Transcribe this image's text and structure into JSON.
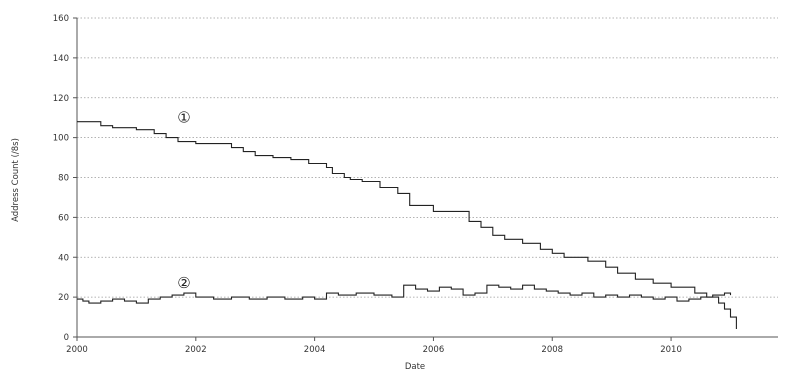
{
  "chart_data": {
    "type": "line",
    "xlabel": "Date",
    "ylabel": "Address Count (/8s)",
    "xlim": [
      2000,
      2011.8
    ],
    "ylim": [
      0,
      160
    ],
    "x_ticks": [
      2000,
      2002,
      2004,
      2006,
      2008,
      2010
    ],
    "y_ticks": [
      0,
      20,
      40,
      60,
      80,
      100,
      120,
      140,
      160
    ],
    "grid": "horizontal dotted",
    "legend": "none",
    "annotations": [
      {
        "label": "①",
        "x": 2001.8,
        "y": 110
      },
      {
        "label": "②",
        "x": 2001.8,
        "y": 27
      }
    ],
    "series": [
      {
        "color": "#222222",
        "step": true,
        "x": [
          2000,
          2000.4,
          2000.6,
          2001.0,
          2001.3,
          2001.5,
          2001.7,
          2002.0,
          2002.6,
          2002.8,
          2003.0,
          2003.3,
          2003.6,
          2003.9,
          2004.2,
          2004.3,
          2004.5,
          2004.6,
          2004.8,
          2005.1,
          2005.4,
          2005.6,
          2006.0,
          2006.6,
          2006.8,
          2007.0,
          2007.2,
          2007.5,
          2007.8,
          2008.0,
          2008.2,
          2008.6,
          2008.9,
          2009.1,
          2009.4,
          2009.7,
          2010.0,
          2010.4,
          2010.6,
          2010.8,
          2010.9,
          2011.0,
          2011.1
        ],
        "y": [
          108,
          106,
          105,
          104,
          102,
          100,
          98,
          97,
          95,
          93,
          91,
          90,
          89,
          87,
          85,
          82,
          80,
          79,
          78,
          75,
          72,
          66,
          63,
          58,
          55,
          51,
          49,
          47,
          44,
          42,
          40,
          38,
          35,
          32,
          29,
          27,
          25,
          22,
          20,
          17,
          14,
          10,
          4
        ]
      },
      {
        "color": "#222222",
        "step": true,
        "x": [
          2000,
          2000.1,
          2000.2,
          2000.4,
          2000.6,
          2000.8,
          2001.0,
          2001.2,
          2001.4,
          2001.6,
          2001.8,
          2002.0,
          2002.3,
          2002.6,
          2002.9,
          2003.2,
          2003.5,
          2003.8,
          2004.0,
          2004.2,
          2004.4,
          2004.7,
          2005.0,
          2005.3,
          2005.5,
          2005.7,
          2005.9,
          2006.1,
          2006.3,
          2006.5,
          2006.7,
          2006.9,
          2007.1,
          2007.3,
          2007.5,
          2007.7,
          2007.9,
          2008.1,
          2008.3,
          2008.5,
          2008.7,
          2008.9,
          2009.1,
          2009.3,
          2009.5,
          2009.7,
          2009.9,
          2010.1,
          2010.3,
          2010.5,
          2010.7,
          2010.9,
          2011.0
        ],
        "y": [
          19,
          18,
          17,
          18,
          19,
          18,
          17,
          19,
          20,
          21,
          22,
          20,
          19,
          20,
          19,
          20,
          19,
          20,
          19,
          22,
          21,
          22,
          21,
          20,
          26,
          24,
          23,
          25,
          24,
          21,
          22,
          26,
          25,
          24,
          26,
          24,
          23,
          22,
          21,
          22,
          20,
          21,
          20,
          21,
          20,
          19,
          20,
          18,
          19,
          20,
          21,
          22,
          21
        ]
      }
    ]
  }
}
